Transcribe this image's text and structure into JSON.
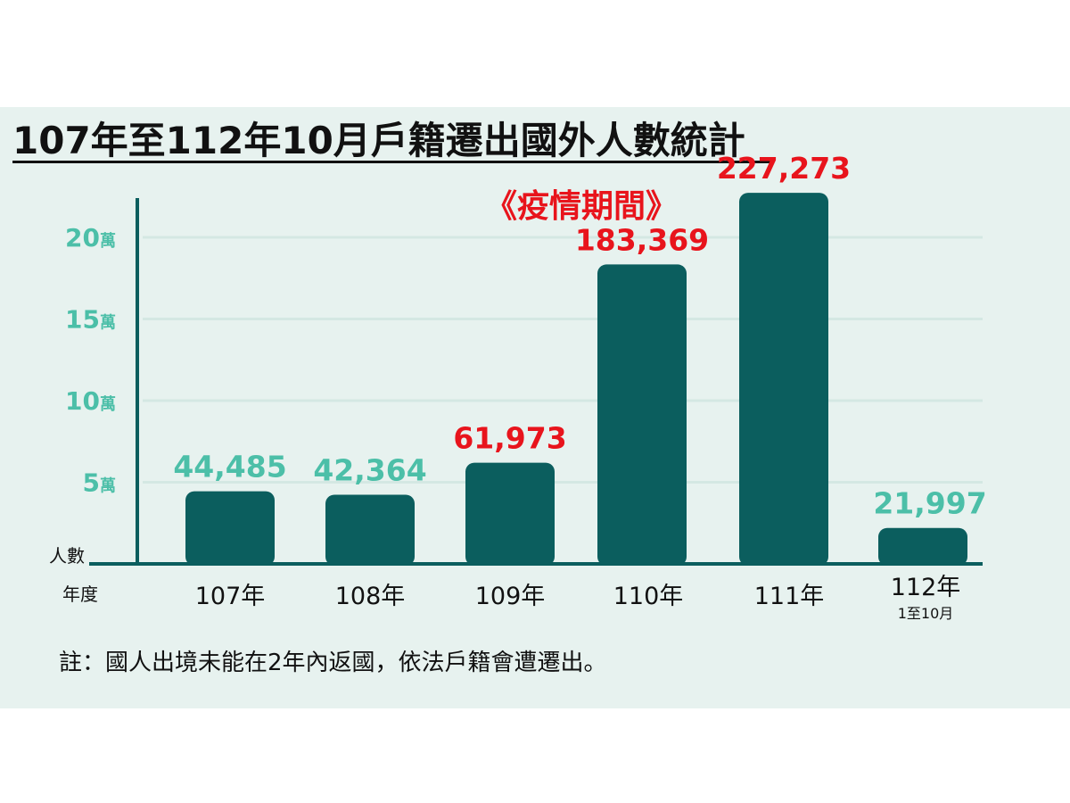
{
  "page": {
    "title": "107年至112年10月戶籍遷出國外人數統計",
    "note": "註：國人出境未能在2年內返國，依法戶籍會遭遷出。"
  },
  "chart_data": {
    "type": "bar",
    "title": "107年至112年10月戶籍遷出國外人數統計",
    "ylabel": "人數",
    "xlabel": "年度",
    "ylim": [
      0,
      220000
    ],
    "y_ticks": [
      {
        "value": 50000,
        "num": "5",
        "unit": "萬"
      },
      {
        "value": 100000,
        "num": "10",
        "unit": "萬"
      },
      {
        "value": 150000,
        "num": "15",
        "unit": "萬"
      },
      {
        "value": 200000,
        "num": "20",
        "unit": "萬"
      }
    ],
    "categories": [
      "107年",
      "108年",
      "109年",
      "110年",
      "111年",
      "112年"
    ],
    "category_sublabels": [
      "",
      "",
      "",
      "",
      "",
      "1至10月"
    ],
    "values": [
      44485,
      42364,
      61973,
      183369,
      227273,
      21997
    ],
    "value_labels": [
      "44,485",
      "42,364",
      "61,973",
      "183,369",
      "227,273",
      "21,997"
    ],
    "label_colors": [
      "#4cbfa8",
      "#4cbfa8",
      "#e8141c",
      "#e8141c",
      "#e8141c",
      "#4cbfa8"
    ],
    "annotation": "《疫情期間》",
    "grid": true,
    "colors": {
      "bar": "#0b5e5e",
      "axis": "#0b5e5e",
      "tick": "#4cbfa8",
      "highlight": "#e8141c",
      "grid": "#d4e8e3",
      "background": "#e7f2ef"
    }
  }
}
